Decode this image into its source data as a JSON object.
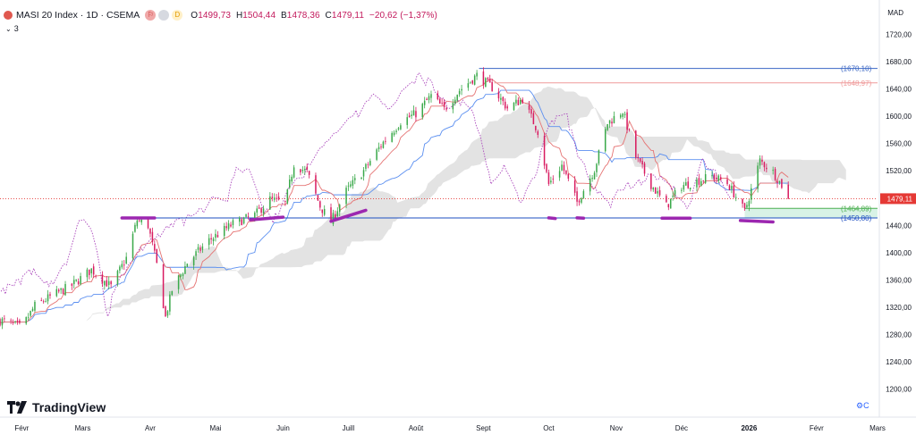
{
  "header": {
    "title": "MASI 20 Index · 1D · CSEMA",
    "badges": [
      "⚐",
      "",
      "D"
    ],
    "ohlc": {
      "o_label": "O",
      "o": "1499,73",
      "h_label": "H",
      "h": "1504,44",
      "b_label": "B",
      "b": "1478,36",
      "c_label": "C",
      "c": "1479,11",
      "change": "−20,62 (−1,37%)"
    },
    "indicator_count": "3",
    "currency": "MAD"
  },
  "branding": {
    "logo_text": "TradingView"
  },
  "chart_data": {
    "type": "candlestick",
    "title": "",
    "xlabel": "",
    "ylabel": "",
    "ylim": [
      1160,
      1760
    ],
    "y_ticks": [
      "1720,00",
      "1680,00",
      "1640,00",
      "1600,00",
      "1560,00",
      "1520,00",
      "1480,00",
      "1440,00",
      "1400,00",
      "1360,00",
      "1320,00",
      "1280,00",
      "1240,00",
      "1200,00"
    ],
    "y_tick_values": [
      1720,
      1680,
      1640,
      1600,
      1560,
      1520,
      1480,
      1440,
      1400,
      1360,
      1320,
      1280,
      1240,
      1200
    ],
    "x_ticks": [
      "Févr",
      "Mars",
      "Avr",
      "Mai",
      "Juin",
      "Juill",
      "Août",
      "Sept",
      "Oct",
      "Nov",
      "Déc",
      "2026",
      "Févr",
      "Mars"
    ],
    "x_tick_dates": [
      "2025-02-01",
      "2025-03-01",
      "2025-04-01",
      "2025-05-01",
      "2025-06-01",
      "2025-07-01",
      "2025-08-01",
      "2025-09-01",
      "2025-10-01",
      "2025-11-01",
      "2025-12-01",
      "2026-01-01",
      "2026-02-01",
      "2026-03-01"
    ],
    "x_start": "2025-01-22",
    "x_end": "2026-03-01",
    "price_anchors": [
      [
        "2025-01-23",
        1300
      ],
      [
        "2025-02-01",
        1290
      ],
      [
        "2025-02-07",
        1322
      ],
      [
        "2025-02-14",
        1335
      ],
      [
        "2025-02-24",
        1352
      ],
      [
        "2025-03-05",
        1375
      ],
      [
        "2025-03-14",
        1350
      ],
      [
        "2025-03-21",
        1392
      ],
      [
        "2025-03-26",
        1448
      ],
      [
        "2025-03-31",
        1440
      ],
      [
        "2025-04-04",
        1382
      ],
      [
        "2025-04-08",
        1305
      ],
      [
        "2025-04-11",
        1345
      ],
      [
        "2025-04-18",
        1385
      ],
      [
        "2025-04-28",
        1418
      ],
      [
        "2025-05-09",
        1442
      ],
      [
        "2025-05-19",
        1455
      ],
      [
        "2025-05-26",
        1478
      ],
      [
        "2025-06-02",
        1472
      ],
      [
        "2025-06-06",
        1530
      ],
      [
        "2025-06-12",
        1518
      ],
      [
        "2025-06-18",
        1468
      ],
      [
        "2025-06-23",
        1445
      ],
      [
        "2025-06-30",
        1490
      ],
      [
        "2025-07-08",
        1520
      ],
      [
        "2025-07-16",
        1558
      ],
      [
        "2025-07-25",
        1592
      ],
      [
        "2025-08-01",
        1604
      ],
      [
        "2025-08-08",
        1630
      ],
      [
        "2025-08-14",
        1610
      ],
      [
        "2025-08-21",
        1638
      ],
      [
        "2025-08-29",
        1660
      ],
      [
        "2025-09-05",
        1642
      ],
      [
        "2025-09-12",
        1612
      ],
      [
        "2025-09-19",
        1625
      ],
      [
        "2025-09-26",
        1578
      ],
      [
        "2025-10-01",
        1500
      ],
      [
        "2025-10-07",
        1528
      ],
      [
        "2025-10-14",
        1474
      ],
      [
        "2025-10-22",
        1522
      ],
      [
        "2025-10-28",
        1590
      ],
      [
        "2025-11-04",
        1608
      ],
      [
        "2025-11-10",
        1540
      ],
      [
        "2025-11-17",
        1500
      ],
      [
        "2025-11-24",
        1468
      ],
      [
        "2025-12-01",
        1498
      ],
      [
        "2025-12-08",
        1505
      ],
      [
        "2025-12-15",
        1512
      ],
      [
        "2025-12-22",
        1502
      ],
      [
        "2025-12-26",
        1482
      ],
      [
        "2025-12-30",
        1460
      ],
      [
        "2026-01-06",
        1535
      ],
      [
        "2026-01-12",
        1518
      ],
      [
        "2026-01-16",
        1499
      ],
      [
        "2026-01-19",
        1479
      ]
    ],
    "horizontal_levels": [
      {
        "value": 1670.1,
        "label": "1670,10",
        "color": "#3a66c4",
        "start": "2025-08-30"
      },
      {
        "value": 1648.97,
        "label": "1648,97",
        "color": "#ef9a9a",
        "start": "2025-09-06"
      },
      {
        "value": 1464.89,
        "label": "1464,89",
        "color": "#4caf50",
        "start": "2025-12-30"
      },
      {
        "value": 1450.8,
        "label": "1450,80",
        "color": "#1e4fc2",
        "start": "2025-03-26"
      }
    ],
    "last_price": {
      "value": 1479.11,
      "label": "1479,11",
      "color": "#e53935"
    },
    "support_zone": {
      "from": "2025-12-30",
      "to": "2026-03-01",
      "low": 1450.8,
      "high": 1464.89,
      "color": "#c8ecdc"
    },
    "annotations_color": "#9c27b0",
    "colors": {
      "up": "#3aa94a",
      "down": "#d81b60",
      "tenkan": "#e57373",
      "kijun": "#5b8ff0",
      "chikou": "#ab47bc",
      "cloud": "#d9d9d9"
    }
  }
}
